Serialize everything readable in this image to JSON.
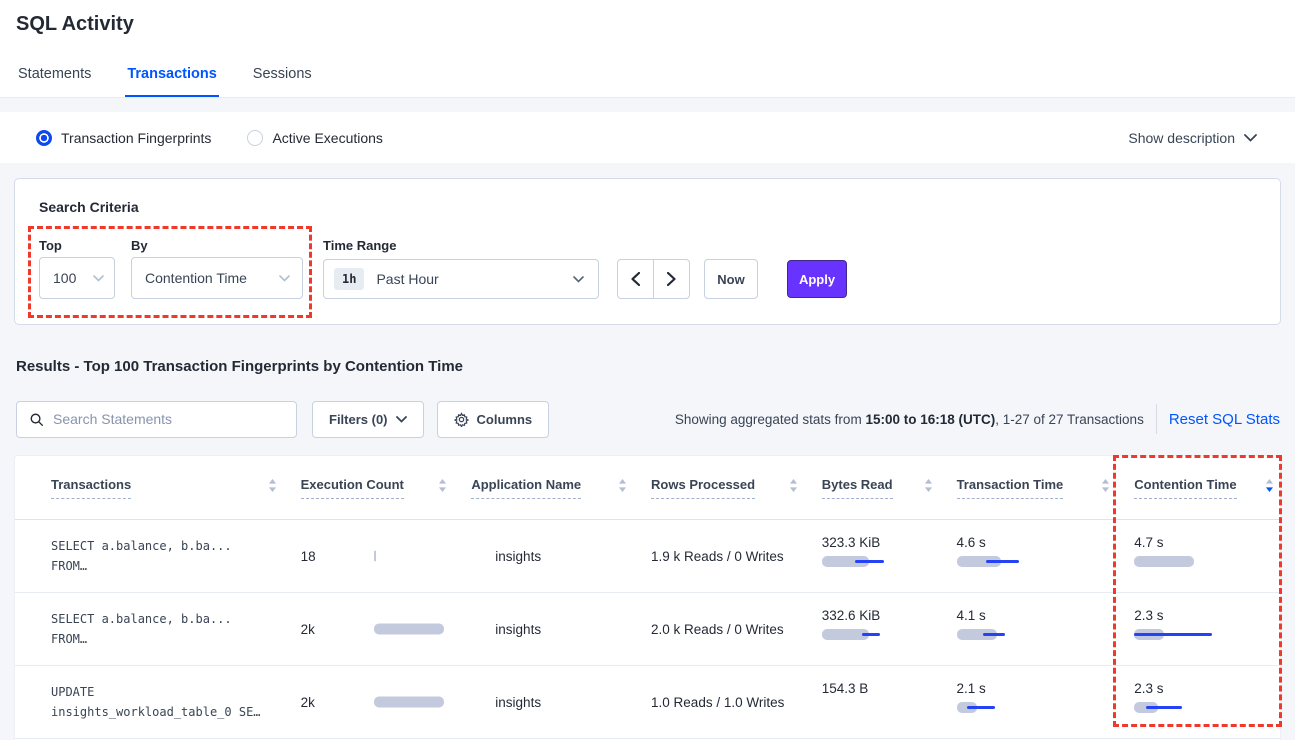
{
  "page": {
    "title": "SQL Activity"
  },
  "tabs": [
    {
      "label": "Statements",
      "active": false
    },
    {
      "label": "Transactions",
      "active": true
    },
    {
      "label": "Sessions",
      "active": false
    }
  ],
  "view_toggle": {
    "options": [
      {
        "label": "Transaction Fingerprints",
        "selected": true
      },
      {
        "label": "Active Executions",
        "selected": false
      }
    ],
    "show_description_label": "Show description"
  },
  "search_criteria": {
    "heading": "Search Criteria",
    "top_label": "Top",
    "top_value": "100",
    "by_label": "By",
    "by_value": "Contention Time",
    "time_range_label": "Time Range",
    "time_range_badge": "1h",
    "time_range_value": "Past Hour",
    "now_label": "Now",
    "apply_label": "Apply"
  },
  "results": {
    "heading": "Results - Top 100 Transaction Fingerprints by Contention Time",
    "search_placeholder": "Search Statements",
    "filters_label": "Filters (0)",
    "columns_label": "Columns",
    "stats_prefix": "Showing aggregated stats from ",
    "stats_bold": "15:00 to 16:18 (UTC)",
    "stats_suffix": ", 1-27 of 27 Transactions",
    "reset_label": "Reset SQL Stats"
  },
  "table": {
    "headers": [
      "Transactions",
      "Execution Count",
      "Application Name",
      "Rows Processed",
      "Bytes Read",
      "Transaction Time",
      "Contention Time"
    ],
    "sort": {
      "column": "Contention Time",
      "direction": "desc"
    },
    "rows": [
      {
        "transaction_line1": "SELECT a.balance, b.ba...",
        "transaction_line2": "FROM…",
        "execution_count": "18",
        "application_name": "insights",
        "rows_processed": "1.9 k Reads / 0 Writes",
        "bytes_read": "323.3 KiB",
        "transaction_time": "4.6 s",
        "contention_time": "4.7 s",
        "bars": {
          "execution": {
            "bar": 2
          },
          "bytes": {
            "bar": 47,
            "line": [
              33,
              62
            ]
          },
          "txn": {
            "bar": 44,
            "line": [
              29,
              62
            ]
          },
          "contention": {
            "bar": 60
          }
        }
      },
      {
        "transaction_line1": "SELECT a.balance, b.ba...",
        "transaction_line2": "FROM…",
        "execution_count": "2k",
        "application_name": "insights",
        "rows_processed": "2.0 k Reads / 0 Writes",
        "bytes_read": "332.6 KiB",
        "transaction_time": "4.1 s",
        "contention_time": "2.3 s",
        "bars": {
          "execution": {
            "bar": 70
          },
          "bytes": {
            "bar": 47,
            "line": [
              40,
              58
            ]
          },
          "txn": {
            "bar": 40,
            "line": [
              26,
              48
            ]
          },
          "contention": {
            "bar": 30,
            "line": [
              0,
              78
            ]
          }
        }
      },
      {
        "transaction_line1": "UPDATE",
        "transaction_line2": "insights_workload_table_0 SE…",
        "execution_count": "2k",
        "application_name": "insights",
        "rows_processed": "1.0 Reads / 1.0 Writes",
        "bytes_read": "154.3 B",
        "transaction_time": "2.1 s",
        "contention_time": "2.3 s",
        "bars": {
          "execution": {
            "bar": 70
          },
          "txn": {
            "bar": 20,
            "line": [
              10,
              38
            ]
          },
          "contention": {
            "bar": 24,
            "line": [
              12,
              48
            ]
          }
        }
      }
    ]
  },
  "colors": {
    "accent_blue": "#0055ff",
    "apply_purple": "#6933ff",
    "annotation_red": "#f0392b",
    "bar_gray": "#c3cade",
    "bar_line_blue": "#2543f5"
  }
}
